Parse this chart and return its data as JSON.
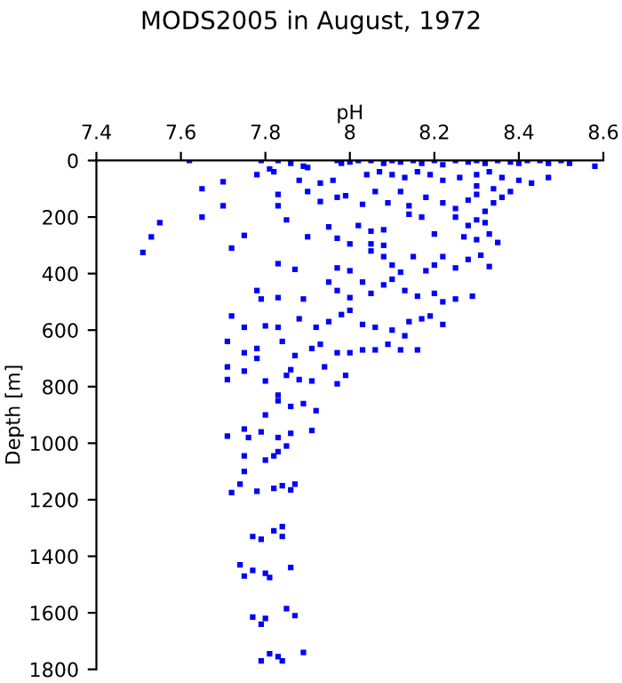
{
  "chart_data": {
    "type": "scatter",
    "title": "MODS2005 in August, 1972",
    "xlabel": "pH",
    "ylabel": "Depth [m]",
    "xlim": [
      7.4,
      8.6
    ],
    "xticks": [
      7.4,
      7.6,
      7.8,
      8,
      8.2,
      8.4,
      8.6
    ],
    "ylim": [
      1800,
      0
    ],
    "yticks": [
      0,
      200,
      400,
      600,
      800,
      1000,
      1200,
      1400,
      1600,
      1800
    ],
    "marker": "square",
    "grid": false,
    "series": [
      {
        "color": "#0000ff",
        "x": [
          7.62,
          7.79,
          7.83,
          7.81,
          7.86,
          7.89,
          7.9,
          7.97,
          7.98,
          8.0,
          8.02,
          8.05,
          8.08,
          8.1,
          8.12,
          8.15,
          8.17,
          8.2,
          8.22,
          8.25,
          8.28,
          8.3,
          8.32,
          8.35,
          8.38,
          8.4,
          8.42,
          8.45,
          8.47,
          8.5,
          8.52,
          8.58,
          7.78,
          7.82,
          7.88,
          7.93,
          7.96,
          8.04,
          8.07,
          8.1,
          8.13,
          8.16,
          8.19,
          8.22,
          8.26,
          8.3,
          8.33,
          8.36,
          8.4,
          8.43,
          8.47,
          7.7,
          7.65,
          7.7,
          7.65,
          7.55,
          7.53,
          7.51,
          7.75,
          7.72,
          7.83,
          7.83,
          7.9,
          7.93,
          7.97,
          7.99,
          8.03,
          8.06,
          8.09,
          8.12,
          8.14,
          8.18,
          8.22,
          8.25,
          8.28,
          8.3,
          8.32,
          8.34,
          8.36,
          8.38,
          8.34,
          8.3,
          7.85,
          7.9,
          7.95,
          7.97,
          8.02,
          8.05,
          8.08,
          8.14,
          8.17,
          8.2,
          8.25,
          8.28,
          8.3,
          8.32,
          8.35,
          8.33,
          8.3,
          8.27,
          8.0,
          8.05,
          8.08,
          7.83,
          7.87,
          7.97,
          8.0,
          8.05,
          8.08,
          8.1,
          8.12,
          8.15,
          8.18,
          8.2,
          8.22,
          8.25,
          8.28,
          8.31,
          8.33,
          7.78,
          7.79,
          7.83,
          7.89,
          7.95,
          7.97,
          8.0,
          8.03,
          8.05,
          8.08,
          8.1,
          8.13,
          8.16,
          8.2,
          8.22,
          8.25,
          8.29,
          7.72,
          7.75,
          7.8,
          7.83,
          7.88,
          7.92,
          7.95,
          7.98,
          8.0,
          8.03,
          8.06,
          8.1,
          8.14,
          8.17,
          8.19,
          8.22,
          7.71,
          7.75,
          7.78,
          7.84,
          7.87,
          7.91,
          7.93,
          7.97,
          8.0,
          8.03,
          8.06,
          8.09,
          8.12,
          8.16,
          8.13,
          7.71,
          7.71,
          7.75,
          7.78,
          7.8,
          7.85,
          7.86,
          7.88,
          7.91,
          7.94,
          7.97,
          7.99,
          7.83,
          7.83,
          7.86,
          7.89,
          7.92,
          7.8,
          7.71,
          7.75,
          7.76,
          7.79,
          7.83,
          7.86,
          7.91,
          7.83,
          7.85,
          7.75,
          7.8,
          7.82,
          7.75,
          7.72,
          7.74,
          7.78,
          7.82,
          7.84,
          7.86,
          7.87,
          7.77,
          7.79,
          7.82,
          7.84,
          7.84,
          7.74,
          7.75,
          7.77,
          7.8,
          7.81,
          7.86,
          7.77,
          7.79,
          7.8,
          7.85,
          7.87,
          7.79,
          7.81,
          7.83,
          7.84,
          7.89
        ],
        "values": [
          0,
          0,
          0,
          30,
          10,
          20,
          25,
          0,
          10,
          5,
          0,
          0,
          10,
          0,
          5,
          0,
          10,
          0,
          15,
          0,
          5,
          0,
          10,
          0,
          5,
          10,
          0,
          0,
          10,
          0,
          10,
          20,
          50,
          40,
          70,
          80,
          70,
          50,
          40,
          50,
          60,
          40,
          50,
          70,
          60,
          50,
          40,
          60,
          70,
          80,
          60,
          75,
          100,
          160,
          200,
          220,
          270,
          325,
          265,
          310,
          120,
          160,
          110,
          145,
          130,
          125,
          155,
          110,
          150,
          110,
          160,
          130,
          150,
          170,
          140,
          120,
          180,
          150,
          130,
          110,
          100,
          90,
          210,
          270,
          235,
          275,
          230,
          250,
          245,
          190,
          200,
          260,
          200,
          230,
          210,
          220,
          290,
          260,
          280,
          270,
          295,
          295,
          300,
          365,
          385,
          380,
          390,
          320,
          340,
          370,
          395,
          340,
          390,
          370,
          340,
          380,
          350,
          335,
          375,
          460,
          490,
          485,
          490,
          430,
          460,
          485,
          430,
          470,
          440,
          420,
          460,
          480,
          470,
          500,
          490,
          480,
          550,
          590,
          585,
          590,
          560,
          590,
          570,
          545,
          530,
          580,
          590,
          600,
          570,
          560,
          550,
          580,
          640,
          680,
          665,
          640,
          690,
          665,
          650,
          680,
          680,
          670,
          670,
          650,
          670,
          670,
          620,
          730,
          775,
          745,
          700,
          780,
          760,
          740,
          775,
          780,
          730,
          790,
          760,
          830,
          850,
          870,
          860,
          885,
          900,
          975,
          950,
          980,
          960,
          980,
          965,
          955,
          1030,
          1010,
          1045,
          1060,
          1045,
          1100,
          1175,
          1145,
          1170,
          1160,
          1150,
          1165,
          1145,
          1330,
          1340,
          1310,
          1295,
          1330,
          1430,
          1470,
          1450,
          1460,
          1475,
          1440,
          1615,
          1640,
          1620,
          1585,
          1610,
          1770,
          1745,
          1755,
          1770,
          1740
        ]
      }
    ]
  }
}
